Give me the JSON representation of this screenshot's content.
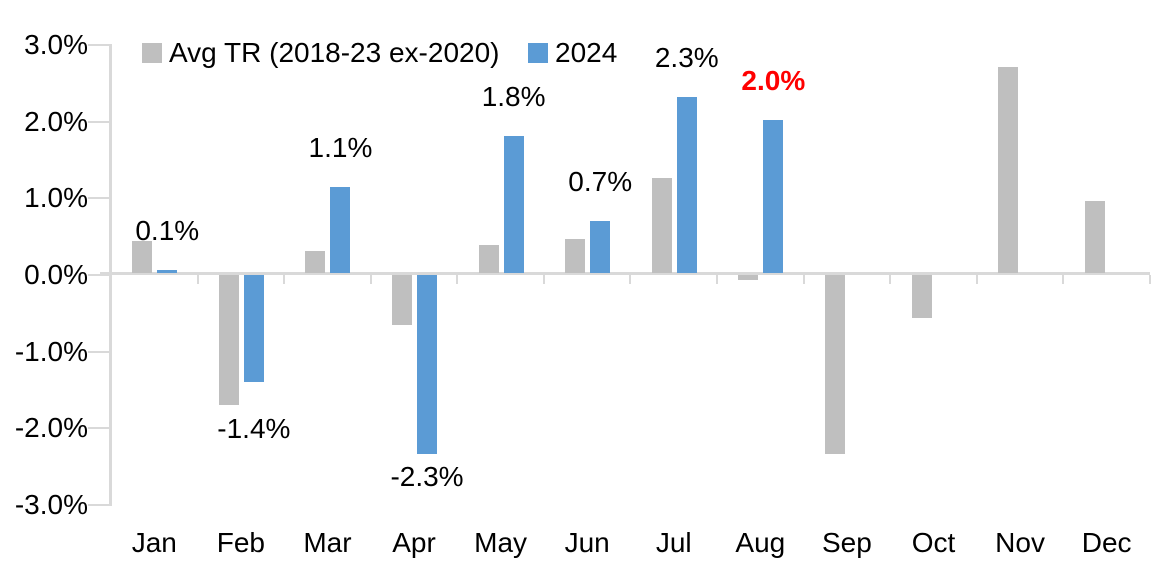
{
  "chart_data": {
    "type": "bar",
    "categories": [
      "Jan",
      "Feb",
      "Mar",
      "Apr",
      "May",
      "Jun",
      "Jul",
      "Aug",
      "Sep",
      "Oct",
      "Nov",
      "Dec"
    ],
    "series": [
      {
        "name": "Avg TR (2018-23 ex-2020)",
        "color": "#BFBFBF",
        "values": [
          0.42,
          -1.7,
          0.3,
          -0.65,
          0.37,
          0.45,
          1.24,
          -0.06,
          -2.33,
          -0.56,
          2.7,
          0.95
        ]
      },
      {
        "name": "2024",
        "color": "#5B9BD5",
        "values": [
          0.05,
          -1.4,
          1.13,
          -2.33,
          1.8,
          0.68,
          2.3,
          2.0,
          null,
          null,
          null,
          null
        ]
      }
    ],
    "point_labels": [
      {
        "text": "0.1%",
        "color": "#000000",
        "bold": false
      },
      {
        "text": "-1.4%",
        "color": "#000000",
        "bold": false
      },
      {
        "text": "1.1%",
        "color": "#000000",
        "bold": false
      },
      {
        "text": "-2.3%",
        "color": "#000000",
        "bold": false
      },
      {
        "text": "1.8%",
        "color": "#000000",
        "bold": false
      },
      {
        "text": "0.7%",
        "color": "#000000",
        "bold": false
      },
      {
        "text": "2.3%",
        "color": "#000000",
        "bold": false
      },
      {
        "text": "2.0%",
        "color": "#FF0000",
        "bold": true
      },
      null,
      null,
      null,
      null
    ],
    "yticks": [
      {
        "label": "3.0%",
        "value": 3
      },
      {
        "label": "2.0%",
        "value": 2
      },
      {
        "label": "1.0%",
        "value": 1
      },
      {
        "label": "0.0%",
        "value": 0
      },
      {
        "label": "-1.0%",
        "value": -1
      },
      {
        "label": "-2.0%",
        "value": -2
      },
      {
        "label": "-3.0%",
        "value": -3
      }
    ],
    "ylim": [
      -3,
      3
    ],
    "grid": false,
    "legend_position": "top",
    "axis_color": "#D9D9D9",
    "text_color": "#000000"
  }
}
